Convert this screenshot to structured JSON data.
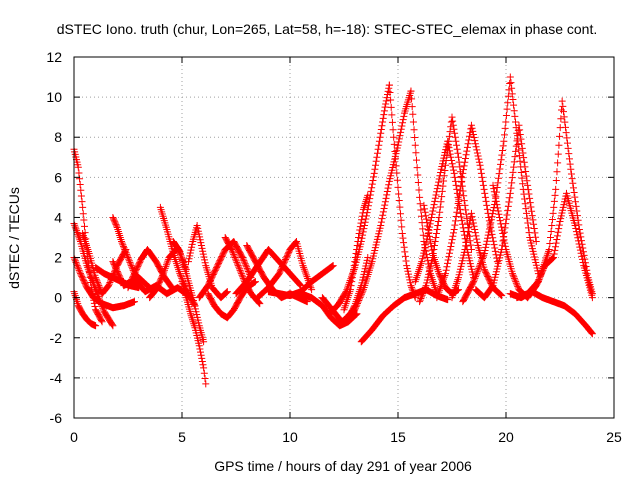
{
  "chart_data": {
    "type": "scatter",
    "title": "dSTEC Iono. truth (chur, Lon=265, Lat=58, h=-18): STEC-STEC_elemax in phase cont.",
    "xlabel": "GPS time / hours of day 291 of year 2006",
    "ylabel": "dSTEC  / TECUs",
    "xlim": [
      0,
      25
    ],
    "ylim": [
      -6,
      12
    ],
    "xticks": [
      0,
      5,
      10,
      15,
      20,
      25
    ],
    "yticks": [
      -6,
      -4,
      -2,
      0,
      2,
      4,
      6,
      8,
      10,
      12
    ],
    "grid": true,
    "marker": "+",
    "color": "#ff0000",
    "arcs": [
      {
        "t": [
          0.0,
          0.2,
          0.4,
          0.6,
          0.8,
          1.0,
          1.3
        ],
        "v": [
          7.4,
          6.5,
          4.5,
          2.3,
          0.5,
          -0.6,
          -1.2
        ]
      },
      {
        "t": [
          0.0,
          0.3,
          0.6,
          1.0,
          1.4,
          1.8
        ],
        "v": [
          3.7,
          2.8,
          1.6,
          0.4,
          -0.7,
          -1.4
        ]
      },
      {
        "t": [
          0.0,
          0.3,
          0.6,
          0.9,
          1.3,
          1.8,
          2.3,
          2.8
        ],
        "v": [
          2.0,
          1.2,
          0.5,
          0.0,
          -0.3,
          -0.5,
          -0.4,
          -0.2
        ]
      },
      {
        "t": [
          0.0,
          0.2,
          0.4,
          0.6,
          0.8,
          1.0
        ],
        "v": [
          0.3,
          -0.4,
          -0.8,
          -1.1,
          -1.3,
          -1.4
        ]
      },
      {
        "t": [
          0.4,
          0.7,
          1.0,
          1.3,
          1.6,
          2.0,
          2.4
        ],
        "v": [
          3.2,
          2.2,
          1.0,
          0.2,
          0.6,
          1.6,
          2.4
        ]
      },
      {
        "t": [
          1.0,
          1.4,
          1.8,
          2.2,
          2.6,
          3.0
        ],
        "v": [
          1.5,
          1.2,
          1.0,
          0.8,
          0.6,
          0.5
        ]
      },
      {
        "t": [
          1.8,
          2.0,
          2.2,
          2.5,
          2.8,
          3.2,
          3.6
        ],
        "v": [
          4.0,
          3.5,
          2.8,
          2.0,
          1.2,
          0.8,
          0.4
        ]
      },
      {
        "t": [
          2.5,
          2.8,
          3.1,
          3.4,
          3.8,
          4.2,
          4.6
        ],
        "v": [
          0.5,
          1.2,
          1.9,
          2.4,
          1.8,
          1.0,
          0.4
        ]
      },
      {
        "t": [
          1.8,
          2.3,
          2.8,
          3.3,
          3.8,
          4.3,
          4.8,
          5.3
        ],
        "v": [
          1.8,
          0.6,
          0.9,
          0.3,
          0.6,
          0.2,
          0.5,
          0.1
        ]
      },
      {
        "t": [
          3.5,
          3.8,
          4.1,
          4.4,
          4.8,
          5.2
        ],
        "v": [
          0.0,
          0.4,
          1.1,
          2.0,
          2.5,
          1.4
        ]
      },
      {
        "t": [
          4.0,
          4.3,
          4.6,
          4.9,
          5.2,
          5.6
        ],
        "v": [
          4.5,
          3.4,
          2.2,
          1.2,
          0.4,
          -0.4
        ]
      },
      {
        "t": [
          4.6,
          4.9,
          5.2,
          5.5,
          5.8,
          6.0
        ],
        "v": [
          2.8,
          2.3,
          1.2,
          0.0,
          -1.4,
          -2.2
        ]
      },
      {
        "t": [
          5.0,
          5.2,
          5.4,
          5.6,
          5.8,
          6.0,
          6.1
        ],
        "v": [
          0.8,
          0.0,
          -0.8,
          -1.5,
          -2.4,
          -3.5,
          -4.3
        ]
      },
      {
        "t": [
          5.3,
          5.5,
          5.7,
          5.9,
          6.1,
          6.4,
          6.8,
          7.1
        ],
        "v": [
          1.8,
          2.8,
          3.6,
          2.6,
          1.6,
          0.5,
          0.0,
          0.3
        ]
      },
      {
        "t": [
          5.8,
          6.2,
          6.6,
          7.0,
          7.4,
          7.8,
          8.2
        ],
        "v": [
          0.0,
          0.6,
          1.5,
          2.4,
          2.8,
          2.0,
          1.0
        ]
      },
      {
        "t": [
          6.2,
          6.5,
          6.8,
          7.1,
          7.4,
          7.7,
          8.0,
          8.4
        ],
        "v": [
          0.2,
          -0.4,
          -0.8,
          -1.0,
          -0.6,
          0.0,
          0.5,
          0.8
        ]
      },
      {
        "t": [
          7.0,
          7.3,
          7.6,
          7.9,
          8.2,
          8.6
        ],
        "v": [
          3.0,
          2.4,
          1.6,
          0.8,
          0.2,
          -0.3
        ]
      },
      {
        "t": [
          7.5,
          8.0,
          8.5,
          9.0,
          9.5,
          10.0,
          10.5
        ],
        "v": [
          0.2,
          0.8,
          1.6,
          2.4,
          1.8,
          1.2,
          0.6
        ]
      },
      {
        "t": [
          8.0,
          8.4,
          8.8,
          9.2,
          9.6,
          10.0,
          10.4,
          10.8
        ],
        "v": [
          2.6,
          1.8,
          1.0,
          0.4,
          0.0,
          0.2,
          0.0,
          -0.2
        ]
      },
      {
        "t": [
          8.5,
          9.0,
          9.5,
          10.0,
          10.3,
          10.6,
          11.0
        ],
        "v": [
          0.0,
          0.5,
          1.2,
          2.4,
          2.8,
          1.6,
          0.4
        ]
      },
      {
        "t": [
          9.0,
          9.5,
          10.0,
          10.5,
          11.0,
          11.5,
          12.0
        ],
        "v": [
          0.3,
          0.2,
          0.1,
          0.3,
          0.8,
          1.2,
          1.6
        ]
      },
      {
        "t": [
          10.5,
          11.0,
          11.5,
          11.9,
          12.3,
          12.7,
          13.1
        ],
        "v": [
          0.2,
          0.0,
          -0.4,
          -1.0,
          -1.4,
          -1.2,
          -0.8
        ]
      },
      {
        "t": [
          11.5,
          11.8,
          12.1,
          12.4,
          12.7,
          13.0,
          13.3,
          13.6
        ],
        "v": [
          0.0,
          -0.4,
          -0.8,
          -1.2,
          -1.0,
          -0.4,
          0.6,
          2.0
        ]
      },
      {
        "t": [
          12.5,
          12.8,
          13.0,
          13.2,
          13.4,
          13.6
        ],
        "v": [
          -0.6,
          0.4,
          1.8,
          3.2,
          4.4,
          5.1
        ]
      },
      {
        "t": [
          11.8,
          12.2,
          12.6,
          13.0,
          13.3,
          13.6,
          13.9,
          14.2,
          14.4,
          14.6
        ],
        "v": [
          -0.8,
          -0.4,
          0.3,
          1.5,
          2.8,
          4.4,
          6.2,
          8.2,
          9.5,
          10.6
        ]
      },
      {
        "t": [
          14.6,
          14.8,
          15.0,
          15.2,
          15.4,
          15.6,
          15.8
        ],
        "v": [
          10.6,
          8.0,
          5.5,
          3.2,
          1.6,
          0.6,
          0.0
        ]
      },
      {
        "t": [
          12.6,
          13.0,
          13.4,
          13.8,
          14.2,
          14.6,
          15.0,
          15.3,
          15.6
        ],
        "v": [
          -1.0,
          -0.6,
          0.4,
          1.8,
          3.6,
          5.8,
          7.6,
          9.2,
          10.3
        ]
      },
      {
        "t": [
          15.6,
          15.8,
          16.0,
          16.2,
          16.5,
          16.8
        ],
        "v": [
          10.3,
          7.6,
          5.0,
          2.8,
          1.2,
          0.2
        ]
      },
      {
        "t": [
          13.3,
          13.8,
          14.3,
          14.8,
          15.3,
          15.8,
          16.3,
          16.8,
          17.3
        ],
        "v": [
          -2.2,
          -1.6,
          -0.9,
          -0.4,
          0.0,
          0.2,
          0.4,
          0.1,
          -0.1
        ]
      },
      {
        "t": [
          15.8,
          16.1,
          16.4,
          16.7,
          17.0,
          17.3,
          17.6,
          17.9,
          18.2,
          18.5
        ],
        "v": [
          0.8,
          1.8,
          3.2,
          4.8,
          6.4,
          7.8,
          6.2,
          4.2,
          2.4,
          1.0
        ]
      },
      {
        "t": [
          16.0,
          16.3,
          16.6,
          16.9,
          17.2,
          17.5,
          17.8,
          18.1,
          18.4
        ],
        "v": [
          -0.2,
          0.6,
          2.0,
          4.0,
          6.6,
          9.0,
          7.0,
          4.6,
          2.4
        ]
      },
      {
        "t": [
          16.2,
          16.4,
          16.6,
          16.9,
          17.2,
          17.5,
          17.8
        ],
        "v": [
          4.6,
          3.4,
          2.2,
          1.2,
          0.5,
          0.2,
          0.4
        ]
      },
      {
        "t": [
          16.8,
          17.2,
          17.6,
          18.0,
          18.4,
          18.8,
          19.2,
          19.6
        ],
        "v": [
          0.0,
          1.2,
          3.4,
          6.2,
          8.6,
          6.6,
          4.0,
          1.8
        ]
      },
      {
        "t": [
          17.5,
          17.8,
          18.1,
          18.4,
          18.7,
          19.0,
          19.4,
          19.8
        ],
        "v": [
          0.0,
          1.0,
          2.4,
          4.2,
          2.6,
          1.4,
          0.5,
          0.1
        ]
      },
      {
        "t": [
          18.0,
          18.5,
          19.0,
          19.5,
          19.9,
          20.2,
          20.5,
          20.8,
          21.1,
          21.5
        ],
        "v": [
          -0.2,
          0.8,
          2.2,
          4.8,
          7.8,
          11.0,
          8.2,
          5.4,
          3.0,
          1.2
        ]
      },
      {
        "t": [
          18.6,
          19.0,
          19.4,
          19.8,
          20.2,
          20.6,
          21.0,
          21.4
        ],
        "v": [
          0.4,
          0.0,
          0.6,
          2.4,
          5.2,
          8.6,
          5.6,
          2.8
        ]
      },
      {
        "t": [
          19.4,
          19.7,
          20.0,
          20.3,
          20.6,
          21.0
        ],
        "v": [
          5.6,
          4.0,
          2.4,
          1.2,
          0.4,
          0.0
        ]
      },
      {
        "t": [
          20.5,
          21.0,
          21.5,
          22.0,
          22.3,
          22.6,
          23.0,
          23.4,
          23.8,
          24.0
        ],
        "v": [
          0.0,
          0.2,
          0.8,
          2.4,
          5.4,
          9.8,
          6.4,
          3.4,
          1.0,
          0.2
        ]
      },
      {
        "t": [
          21.0,
          21.4,
          21.8,
          22.2,
          22.5,
          22.8,
          23.2,
          23.6,
          24.0
        ],
        "v": [
          0.0,
          0.6,
          1.6,
          2.0,
          3.8,
          5.2,
          3.6,
          1.6,
          0.0
        ]
      },
      {
        "t": [
          20.2,
          20.7,
          21.2,
          21.7,
          22.2,
          22.7,
          23.2,
          23.7,
          24.0
        ],
        "v": [
          0.2,
          0.0,
          0.3,
          0.0,
          -0.2,
          -0.4,
          -0.8,
          -1.4,
          -1.8
        ]
      }
    ]
  }
}
